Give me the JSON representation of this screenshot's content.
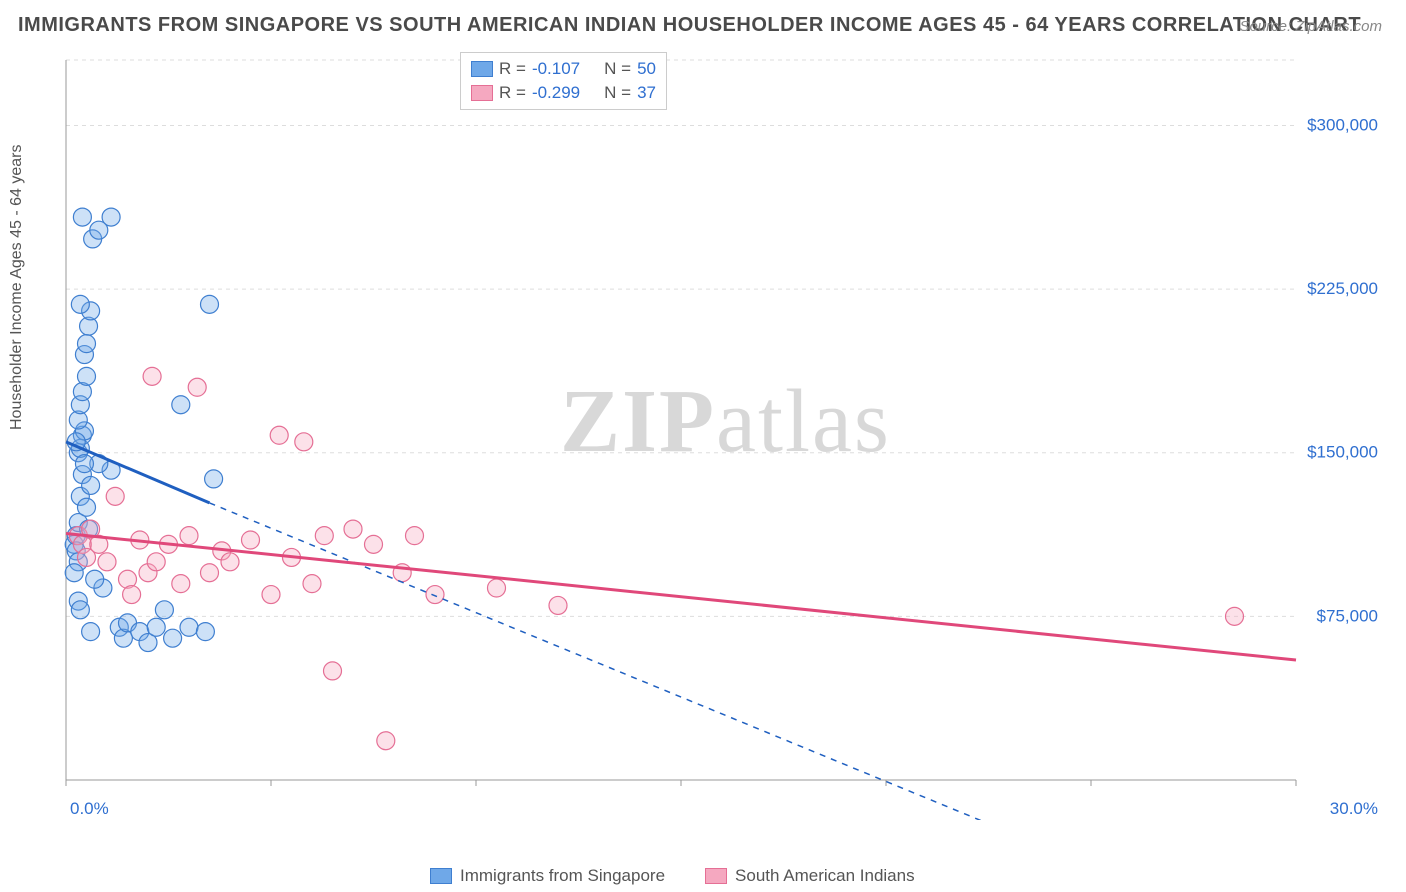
{
  "title": "IMMIGRANTS FROM SINGAPORE VS SOUTH AMERICAN INDIAN HOUSEHOLDER INCOME AGES 45 - 64 YEARS CORRELATION CHART",
  "source": "Source: ZipAtlas.com",
  "ylabel": "Householder Income Ages 45 - 64 years",
  "watermark_bold": "ZIP",
  "watermark_rest": "atlas",
  "chart": {
    "type": "scatter",
    "background_color": "#ffffff",
    "grid_color": "#dddddd",
    "axis_color": "#999999",
    "xlim": [
      0.0,
      30.0
    ],
    "ylim": [
      0,
      330000
    ],
    "x_ticks": [
      0.0,
      5.0,
      10.0,
      15.0,
      20.0,
      25.0,
      30.0
    ],
    "x_tick_labels_visible": {
      "0.0": "0.0%",
      "30.0": "30.0%"
    },
    "y_ticks": [
      75000,
      150000,
      225000,
      300000
    ],
    "y_tick_labels": {
      "75000": "$75,000",
      "150000": "$150,000",
      "225000": "$225,000",
      "300000": "$300,000"
    },
    "label_color": "#2f6fd0",
    "label_fontsize": 17,
    "marker_radius": 9,
    "marker_fill_opacity": 0.35,
    "line_width": 3,
    "dash_pattern": "6 6"
  },
  "series": {
    "blue": {
      "label": "Immigrants from Singapore",
      "color": "#6fa8e8",
      "stroke": "#3f7fd0",
      "line_color": "#1f5fc0",
      "R": "-0.107",
      "N": "50",
      "trend": {
        "x1": 0.0,
        "y1": 155000,
        "x2": 3.5,
        "y2": 127000,
        "x_extend": 22.5,
        "y_extend": -20000
      },
      "points": [
        [
          0.2,
          108000
        ],
        [
          0.25,
          112000
        ],
        [
          0.3,
          118000
        ],
        [
          0.25,
          105000
        ],
        [
          0.3,
          100000
        ],
        [
          0.2,
          95000
        ],
        [
          0.35,
          130000
        ],
        [
          0.4,
          140000
        ],
        [
          0.3,
          150000
        ],
        [
          0.35,
          152000
        ],
        [
          0.4,
          158000
        ],
        [
          0.45,
          160000
        ],
        [
          0.3,
          165000
        ],
        [
          0.35,
          172000
        ],
        [
          0.4,
          178000
        ],
        [
          0.5,
          185000
        ],
        [
          0.45,
          195000
        ],
        [
          0.5,
          200000
        ],
        [
          0.55,
          208000
        ],
        [
          0.6,
          215000
        ],
        [
          0.35,
          218000
        ],
        [
          0.65,
          248000
        ],
        [
          0.8,
          252000
        ],
        [
          1.1,
          258000
        ],
        [
          0.4,
          258000
        ],
        [
          1.1,
          142000
        ],
        [
          1.3,
          70000
        ],
        [
          1.4,
          65000
        ],
        [
          1.5,
          72000
        ],
        [
          1.8,
          68000
        ],
        [
          2.0,
          63000
        ],
        [
          2.2,
          70000
        ],
        [
          2.4,
          78000
        ],
        [
          2.6,
          65000
        ],
        [
          3.0,
          70000
        ],
        [
          3.4,
          68000
        ],
        [
          2.8,
          172000
        ],
        [
          3.6,
          138000
        ],
        [
          3.5,
          218000
        ],
        [
          0.9,
          88000
        ],
        [
          0.7,
          92000
        ],
        [
          0.6,
          135000
        ],
        [
          0.8,
          145000
        ],
        [
          0.5,
          125000
        ],
        [
          0.55,
          115000
        ],
        [
          0.3,
          82000
        ],
        [
          0.35,
          78000
        ],
        [
          0.6,
          68000
        ],
        [
          0.25,
          155000
        ],
        [
          0.45,
          145000
        ]
      ]
    },
    "pink": {
      "label": "South American Indians",
      "color": "#f5a8c0",
      "stroke": "#e56f95",
      "line_color": "#e0487a",
      "R": "-0.299",
      "N": "37",
      "trend": {
        "x1": 0.0,
        "y1": 113000,
        "x2": 30.0,
        "y2": 55000
      },
      "points": [
        [
          0.3,
          112000
        ],
        [
          0.4,
          108000
        ],
        [
          0.5,
          102000
        ],
        [
          0.6,
          115000
        ],
        [
          0.8,
          108000
        ],
        [
          1.0,
          100000
        ],
        [
          1.2,
          130000
        ],
        [
          1.5,
          92000
        ],
        [
          1.8,
          110000
        ],
        [
          2.0,
          95000
        ],
        [
          2.2,
          100000
        ],
        [
          2.5,
          108000
        ],
        [
          2.8,
          90000
        ],
        [
          3.0,
          112000
        ],
        [
          3.5,
          95000
        ],
        [
          3.8,
          105000
        ],
        [
          4.0,
          100000
        ],
        [
          4.5,
          110000
        ],
        [
          5.0,
          85000
        ],
        [
          5.5,
          102000
        ],
        [
          6.0,
          90000
        ],
        [
          6.3,
          112000
        ],
        [
          6.5,
          50000
        ],
        [
          7.0,
          115000
        ],
        [
          7.5,
          108000
        ],
        [
          7.8,
          18000
        ],
        [
          8.2,
          95000
        ],
        [
          8.5,
          112000
        ],
        [
          9.0,
          85000
        ],
        [
          10.5,
          88000
        ],
        [
          12.0,
          80000
        ],
        [
          2.1,
          185000
        ],
        [
          3.2,
          180000
        ],
        [
          5.2,
          158000
        ],
        [
          5.8,
          155000
        ],
        [
          1.6,
          85000
        ],
        [
          28.5,
          75000
        ]
      ]
    }
  },
  "legend_top": {
    "r_label": "R =",
    "n_label": "N ="
  }
}
